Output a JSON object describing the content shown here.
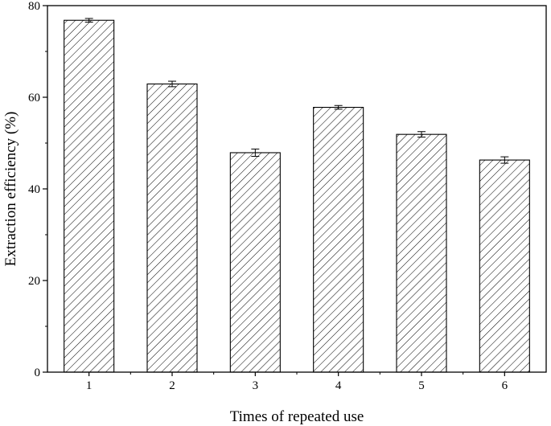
{
  "chart_data": {
    "type": "bar",
    "categories": [
      "1",
      "2",
      "3",
      "4",
      "5",
      "6"
    ],
    "values": [
      76.8,
      62.9,
      47.9,
      57.8,
      51.9,
      46.3
    ],
    "errors": [
      0.4,
      0.6,
      0.8,
      0.4,
      0.6,
      0.7
    ],
    "xlabel": "Times of repeated use",
    "ylabel": "Extraction efficiency (%)",
    "ylim": [
      0,
      80
    ],
    "yticks": [
      "0",
      "20",
      "40",
      "60",
      "80"
    ],
    "bar_fill": "diagonal hatch",
    "grid": false,
    "legend": "none"
  }
}
